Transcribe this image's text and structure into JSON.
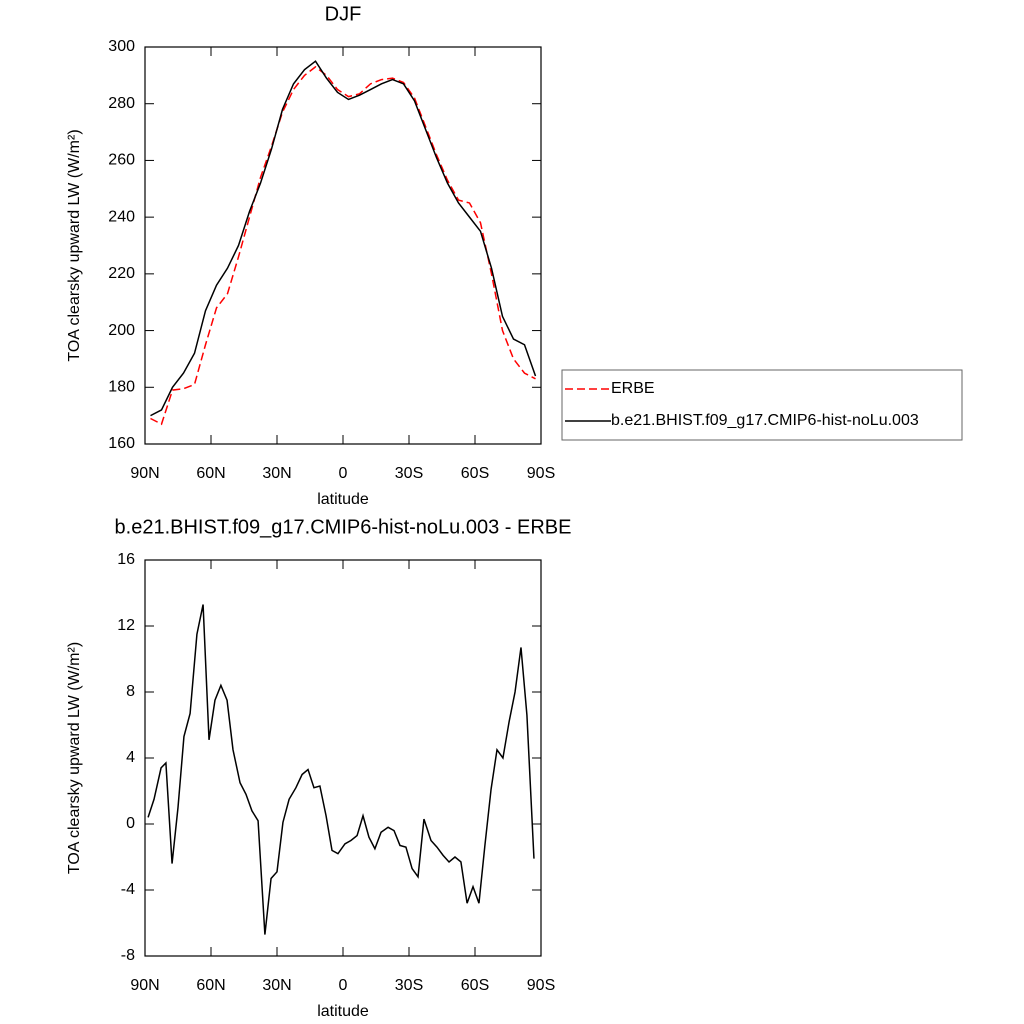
{
  "chart_data": [
    {
      "type": "line",
      "title": "DJF",
      "xlabel": "latitude",
      "ylabel": "TOA clearsky upward LW (W/m²)",
      "x": [
        87.5,
        82.5,
        77.5,
        72.5,
        67.5,
        62.5,
        57.5,
        52.5,
        47.5,
        42.5,
        37.5,
        32.5,
        27.5,
        22.5,
        17.5,
        12.5,
        7.5,
        2.5,
        -2.5,
        -7.5,
        -12.5,
        -17.5,
        -22.5,
        -27.5,
        -32.5,
        -37.5,
        -42.5,
        -47.5,
        -52.5,
        -57.5,
        -62.5,
        -67.5,
        -72.5,
        -77.5,
        -82.5,
        -87.5
      ],
      "series": [
        {
          "name": "ERBE",
          "color": "#ff0000",
          "dash": "dashed",
          "values": [
            169,
            167,
            179,
            179.5,
            181,
            195,
            208,
            213,
            226,
            240,
            254,
            265,
            277,
            285,
            290,
            293,
            290,
            285,
            282.5,
            283.5,
            287,
            288.5,
            289,
            287.5,
            282,
            272,
            262,
            253,
            246,
            245,
            238,
            220,
            200,
            190,
            185,
            183
          ]
        },
        {
          "name": "b.e21.BHIST.f09_g17.CMIP6-hist-noLu.003",
          "color": "#000000",
          "dash": "solid",
          "values": [
            170,
            172,
            180,
            185,
            192,
            207,
            216,
            222,
            230,
            242,
            252,
            264,
            278,
            287,
            292,
            295,
            289,
            284,
            281.5,
            283,
            285,
            287,
            288.5,
            287,
            281,
            271,
            261,
            252,
            245,
            240,
            235,
            222,
            205,
            197,
            195,
            184
          ]
        }
      ],
      "xlim": [
        90,
        -90
      ],
      "xticks": [
        {
          "value": 90,
          "label": "90N"
        },
        {
          "value": 60,
          "label": "60N"
        },
        {
          "value": 30,
          "label": "30N"
        },
        0,
        {
          "value": -30,
          "label": "30S"
        },
        {
          "value": -60,
          "label": "60S"
        },
        {
          "value": -90,
          "label": "90S"
        }
      ],
      "ylim": [
        160,
        300
      ],
      "yticks": [
        160,
        180,
        200,
        220,
        240,
        260,
        280,
        300
      ],
      "legend": "outside-right"
    },
    {
      "type": "line",
      "title": "b.e21.BHIST.f09_g17.CMIP6-hist-noLu.003 - ERBE",
      "xlabel": "latitude",
      "ylabel": "TOA clearsky upward LW (W/m²)",
      "x": [
        88.6,
        85.9,
        82.7,
        80.5,
        77.7,
        75,
        72.3,
        69.5,
        66.4,
        63.6,
        60.9,
        58.2,
        55.5,
        52.7,
        50,
        46.8,
        44.1,
        41.4,
        38.6,
        35.5,
        32.7,
        30,
        27.3,
        24.5,
        21.4,
        18.6,
        15.9,
        13.2,
        10.5,
        7.7,
        5,
        2.3,
        -0.9,
        -3.6,
        -6.4,
        -9.1,
        -11.8,
        -14.5,
        -17.3,
        -20.5,
        -23.2,
        -25.9,
        -28.6,
        -31.4,
        -34.1,
        -36.8,
        -40,
        -42.7,
        -45.5,
        -48.2,
        -50.9,
        -53.6,
        -56.4,
        -59.1,
        -61.8,
        -64.5,
        -67.3,
        -70,
        -72.7,
        -75.5,
        -78.2,
        -80.9,
        -83.6,
        -86.8
      ],
      "values": [
        0.4,
        1.5,
        3.4,
        3.7,
        -2.4,
        1,
        5.3,
        6.7,
        11.5,
        13.3,
        5.1,
        7.5,
        8.4,
        7.5,
        4.5,
        2.5,
        1.8,
        0.8,
        0.2,
        -6.7,
        -3.3,
        -2.9,
        0.1,
        1.5,
        2.2,
        3,
        3.3,
        2.2,
        2.3,
        0.5,
        -1.6,
        -1.8,
        -1.2,
        -1,
        -0.7,
        0.5,
        -0.8,
        -1.5,
        -0.5,
        -0.2,
        -0.4,
        -1.3,
        -1.4,
        -2.7,
        -3.2,
        0.3,
        -1,
        -1.4,
        -1.9,
        -2.3,
        -2,
        -2.3,
        -4.8,
        -3.8,
        -4.8,
        -1.3,
        2.1,
        4.5,
        4,
        6.2,
        8,
        10.7,
        6.6,
        -2.1
      ],
      "color": "#000000",
      "xlim": [
        90,
        -90
      ],
      "xticks": [
        {
          "value": 90,
          "label": "90N"
        },
        {
          "value": 60,
          "label": "60N"
        },
        {
          "value": 30,
          "label": "30N"
        },
        0,
        {
          "value": -30,
          "label": "30S"
        },
        {
          "value": -60,
          "label": "60S"
        },
        {
          "value": -90,
          "label": "90S"
        }
      ],
      "ylim": [
        -8,
        16
      ],
      "yticks": [
        -8,
        -4,
        0,
        4,
        8,
        12,
        16
      ]
    }
  ]
}
